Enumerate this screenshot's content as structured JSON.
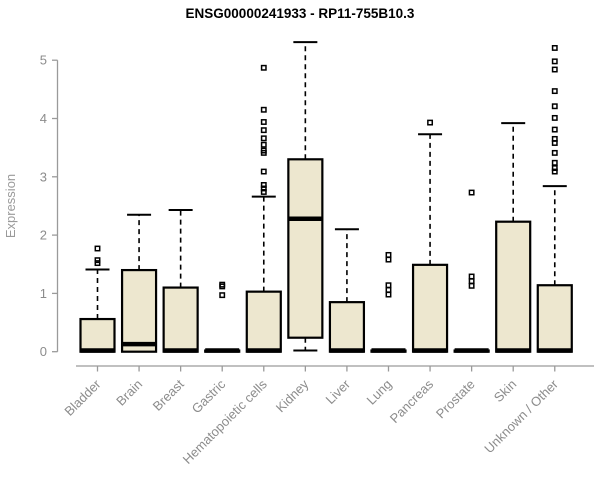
{
  "title": "ENSG00000241933 - RP11-755B10.3",
  "chart_data": {
    "type": "boxplot",
    "title": "ENSG00000241933 - RP11-755B10.3",
    "xlabel": "",
    "ylabel": "Expression",
    "ylim": [
      0,
      5
    ],
    "yticks": [
      0,
      1,
      2,
      3,
      4,
      5
    ],
    "grid": false,
    "legend": "none",
    "categories": [
      "Bladder",
      "Brain",
      "Breast",
      "Gastric",
      "Hematopoietic cells",
      "Kidney",
      "Liver",
      "Lung",
      "Pancreas",
      "Prostate",
      "Skin",
      "Unknown / Other"
    ],
    "series": [
      {
        "name": "Bladder",
        "low": 0,
        "q1": 0,
        "median": 0.02,
        "q3": 0.56,
        "high": 1.41,
        "outliers": [
          1.52,
          1.57,
          1.77
        ]
      },
      {
        "name": "Brain",
        "low": 0,
        "q1": 0,
        "median": 0.13,
        "q3": 1.4,
        "high": 2.35,
        "outliers": []
      },
      {
        "name": "Breast",
        "low": 0,
        "q1": 0,
        "median": 0.02,
        "q3": 1.1,
        "high": 2.43,
        "outliers": []
      },
      {
        "name": "Gastric",
        "low": 0,
        "q1": 0,
        "median": 0.02,
        "q3": 0.02,
        "high": 0.02,
        "outliers": [
          0.97,
          1.12,
          1.15
        ]
      },
      {
        "name": "Hematopoietic cells",
        "low": 0,
        "q1": 0,
        "median": 0.02,
        "q3": 1.03,
        "high": 2.66,
        "outliers": [
          2.74,
          2.8,
          2.86,
          3.09,
          3.41,
          3.45,
          3.55,
          3.66,
          3.8,
          3.94,
          4.15,
          4.87
        ]
      },
      {
        "name": "Kidney",
        "low": 0.02,
        "q1": 0.24,
        "median": 2.28,
        "q3": 3.3,
        "high": 5.31,
        "outliers": []
      },
      {
        "name": "Liver",
        "low": 0,
        "q1": 0,
        "median": 0.02,
        "q3": 0.85,
        "high": 2.1,
        "outliers": []
      },
      {
        "name": "Lung",
        "low": 0,
        "q1": 0,
        "median": 0.02,
        "q3": 0.02,
        "high": 0.02,
        "outliers": [
          0.98,
          1.06,
          1.14,
          1.58,
          1.66
        ]
      },
      {
        "name": "Pancreas",
        "low": 0,
        "q1": 0,
        "median": 0.02,
        "q3": 1.49,
        "high": 3.73,
        "outliers": [
          3.93
        ]
      },
      {
        "name": "Prostate",
        "low": 0,
        "q1": 0,
        "median": 0.02,
        "q3": 0.02,
        "high": 0.02,
        "outliers": [
          1.13,
          1.21,
          1.29,
          2.73
        ]
      },
      {
        "name": "Skin",
        "low": 0,
        "q1": 0,
        "median": 0.02,
        "q3": 2.23,
        "high": 3.92,
        "outliers": []
      },
      {
        "name": "Unknown / Other",
        "low": 0,
        "q1": 0,
        "median": 0.02,
        "q3": 1.14,
        "high": 2.84,
        "outliers": [
          3.09,
          3.15,
          3.24,
          3.41,
          3.58,
          3.65,
          3.81,
          4.01,
          4.21,
          4.47,
          4.84,
          4.98,
          5.21
        ]
      }
    ],
    "colors": {
      "box_fill": "#ede7cf",
      "box_stroke": "#000000",
      "median": "#000000",
      "whisker": "#000000",
      "outlier": "#000000",
      "axis": "#9a9a9a",
      "tick_label": "#8c8c8c",
      "title": "#000000"
    }
  }
}
